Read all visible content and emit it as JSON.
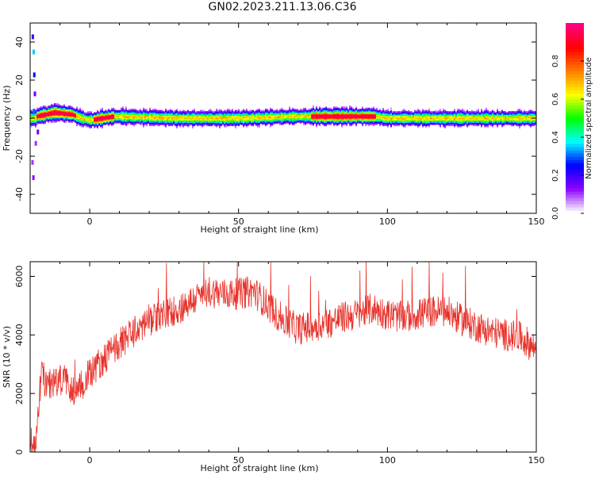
{
  "title": "GN02.2023.211.13.06.C36",
  "chart_data": [
    {
      "type": "heatmap",
      "xlabel": "Height of straight line (km)",
      "ylabel": "Frequency (Hz)",
      "xlim": [
        -20,
        150
      ],
      "ylim": [
        -50,
        50
      ],
      "xticks": [
        0,
        50,
        100,
        150
      ],
      "yticks": [
        -40,
        -20,
        0,
        20,
        40
      ],
      "colorbar": {
        "label": "Normalized spectral amplitude",
        "range": [
          0.0,
          1.0
        ],
        "ticks": [
          "0.0",
          "0.2",
          "0.4",
          "0.6",
          "0.8"
        ],
        "colors": [
          "#ffffff",
          "#8a00ff",
          "#0000ff",
          "#00ffff",
          "#00ff00",
          "#ffff00",
          "#ff8000",
          "#ff0000",
          "#ff0080"
        ]
      },
      "ridge": [
        {
          "x": -18,
          "f": 1
        },
        {
          "x": -12,
          "f": 3
        },
        {
          "x": -6,
          "f": 2
        },
        {
          "x": -3,
          "f": 0
        },
        {
          "x": 0,
          "f": -1
        },
        {
          "x": 8,
          "f": 1
        },
        {
          "x": 30,
          "f": 0
        },
        {
          "x": 50,
          "f": 0
        },
        {
          "x": 70,
          "f": 1
        },
        {
          "x": 80,
          "f": 1
        },
        {
          "x": 95,
          "f": 1
        },
        {
          "x": 100,
          "f": 0
        },
        {
          "x": 120,
          "f": 0
        },
        {
          "x": 150,
          "f": 0
        }
      ],
      "hot_segments": [
        [
          -18,
          -5
        ],
        [
          1,
          8
        ],
        [
          74,
          96
        ]
      ]
    },
    {
      "type": "line",
      "xlabel": "Height of straight line (km)",
      "ylabel": "SNR (10 * v/v)",
      "xlim": [
        -20,
        150
      ],
      "ylim": [
        0,
        6500
      ],
      "xticks": [
        0,
        50,
        100,
        150
      ],
      "yticks": [
        0,
        2000,
        4000,
        6000
      ],
      "series": [
        {
          "color": "#e8312a",
          "x": [
            -20,
            -18,
            -17,
            -16,
            -15,
            -12,
            -8,
            -5,
            0,
            5,
            10,
            15,
            20,
            25,
            30,
            35,
            40,
            45,
            50,
            55,
            60,
            65,
            70,
            75,
            80,
            85,
            90,
            95,
            100,
            105,
            110,
            115,
            120,
            125,
            130,
            135,
            140,
            145,
            150
          ],
          "y": [
            400,
            300,
            1800,
            2800,
            2300,
            2400,
            2500,
            2000,
            2700,
            3200,
            3700,
            4100,
            4500,
            4700,
            4900,
            5200,
            5500,
            5400,
            5400,
            5500,
            5000,
            4500,
            4200,
            4300,
            4400,
            4600,
            4700,
            4900,
            4700,
            4600,
            4700,
            4800,
            4800,
            4500,
            4300,
            4100,
            4000,
            3900,
            3500
          ],
          "noise": 550
        }
      ]
    }
  ]
}
